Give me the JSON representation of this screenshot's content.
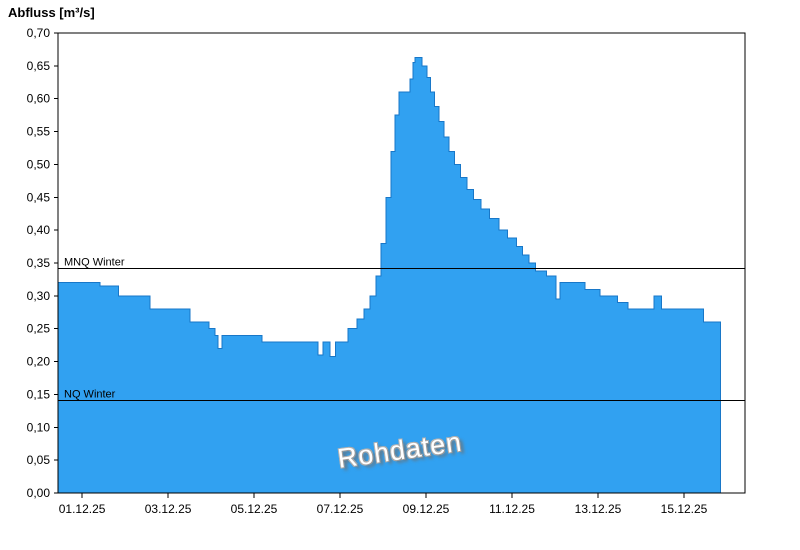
{
  "title": "Abfluss [m³/s]",
  "watermark": "Rohdaten",
  "colors": {
    "background": "#ffffff",
    "area_fill": "#31A1F1",
    "area_stroke": "#1877C8",
    "axis": "#000000",
    "reference_line": "#000000",
    "text": "#000000"
  },
  "chart_data": {
    "type": "area",
    "step": true,
    "title": "Abfluss [m³/s]",
    "xlabel": "",
    "ylabel": "Abfluss [m³/s]",
    "ylim": [
      0.0,
      0.7
    ],
    "y_tick_step": 0.05,
    "y_tick_labels": [
      "0,00",
      "0,05",
      "0,10",
      "0,15",
      "0,20",
      "0,25",
      "0,30",
      "0,35",
      "0,40",
      "0,45",
      "0,50",
      "0,55",
      "0,60",
      "0,65",
      "0,70"
    ],
    "decimal_separator": ",",
    "grid": false,
    "x_range_days": [
      -0.56,
      15.42
    ],
    "x_ticks": [
      {
        "day": 0,
        "label": "01.12.25"
      },
      {
        "day": 2,
        "label": "03.12.25"
      },
      {
        "day": 4,
        "label": "05.12.25"
      },
      {
        "day": 6,
        "label": "07.12.25"
      },
      {
        "day": 8,
        "label": "09.12.25"
      },
      {
        "day": 10,
        "label": "11.12.25"
      },
      {
        "day": 12,
        "label": "13.12.25"
      },
      {
        "day": 14,
        "label": "15.12.25"
      }
    ],
    "reference_lines": [
      {
        "label": "MNQ Winter",
        "value": 0.342
      },
      {
        "label": "NQ Winter",
        "value": 0.141
      }
    ],
    "series": [
      {
        "name": "Abfluss Rohdaten",
        "unit": "m³/s",
        "t_end": 14.85,
        "points": [
          [
            -0.56,
            0.32
          ],
          [
            0.42,
            0.315
          ],
          [
            0.85,
            0.3
          ],
          [
            1.58,
            0.28
          ],
          [
            2.51,
            0.26
          ],
          [
            2.95,
            0.25
          ],
          [
            3.09,
            0.24
          ],
          [
            3.16,
            0.22
          ],
          [
            3.26,
            0.24
          ],
          [
            4.19,
            0.23
          ],
          [
            5.49,
            0.21
          ],
          [
            5.6,
            0.23
          ],
          [
            5.77,
            0.208
          ],
          [
            5.9,
            0.23
          ],
          [
            6.19,
            0.25
          ],
          [
            6.4,
            0.265
          ],
          [
            6.56,
            0.28
          ],
          [
            6.7,
            0.3
          ],
          [
            6.84,
            0.33
          ],
          [
            6.95,
            0.38
          ],
          [
            7.07,
            0.45
          ],
          [
            7.19,
            0.52
          ],
          [
            7.28,
            0.575
          ],
          [
            7.37,
            0.61
          ],
          [
            7.63,
            0.63
          ],
          [
            7.7,
            0.655
          ],
          [
            7.74,
            0.663
          ],
          [
            7.91,
            0.65
          ],
          [
            8.02,
            0.632
          ],
          [
            8.1,
            0.61
          ],
          [
            8.2,
            0.588
          ],
          [
            8.3,
            0.565
          ],
          [
            8.42,
            0.542
          ],
          [
            8.54,
            0.52
          ],
          [
            8.66,
            0.5
          ],
          [
            8.8,
            0.48
          ],
          [
            8.95,
            0.462
          ],
          [
            9.1,
            0.447
          ],
          [
            9.28,
            0.432
          ],
          [
            9.48,
            0.418
          ],
          [
            9.7,
            0.4
          ],
          [
            9.9,
            0.388
          ],
          [
            10.1,
            0.375
          ],
          [
            10.25,
            0.362
          ],
          [
            10.4,
            0.35
          ],
          [
            10.55,
            0.338
          ],
          [
            10.8,
            0.33
          ],
          [
            11.02,
            0.295
          ],
          [
            11.12,
            0.32
          ],
          [
            11.7,
            0.31
          ],
          [
            12.05,
            0.3
          ],
          [
            12.45,
            0.29
          ],
          [
            12.7,
            0.28
          ],
          [
            13.3,
            0.3
          ],
          [
            13.48,
            0.28
          ],
          [
            14.45,
            0.26
          ]
        ]
      }
    ]
  }
}
